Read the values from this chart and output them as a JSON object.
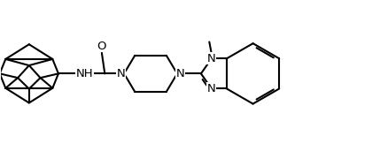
{
  "background_color": "#ffffff",
  "line_color": "#000000",
  "line_width": 1.5,
  "font_size_label": 9.5,
  "figsize": [
    4.29,
    1.71
  ],
  "dpi": 100,
  "xlim": [
    0,
    10
  ],
  "ylim": [
    0,
    4
  ]
}
